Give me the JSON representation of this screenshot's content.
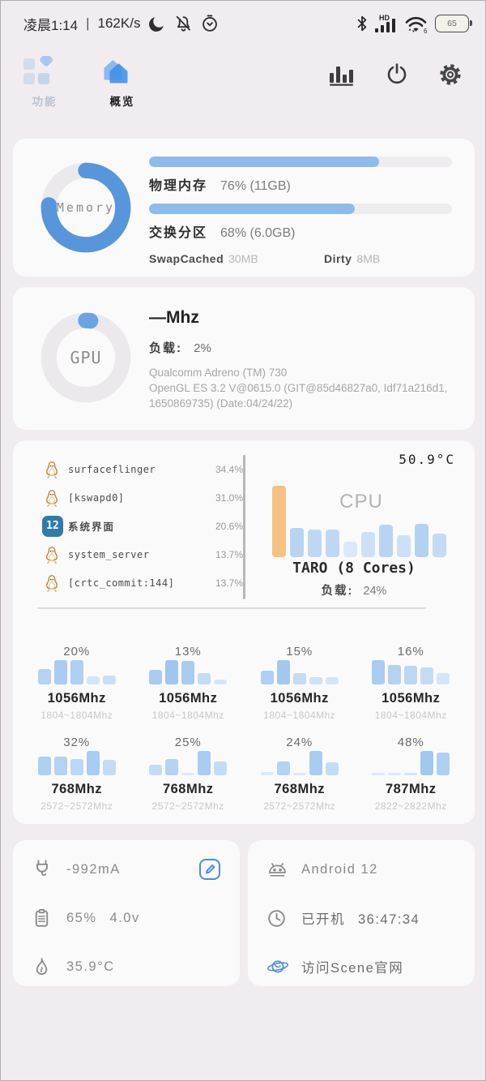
{
  "status_bar": {
    "time": "凌晨1:14",
    "divider": "|",
    "net_speed": "162K/s",
    "left_icons": [
      "moon-icon",
      "bell-muted-icon",
      "alarm-icon"
    ],
    "hd_label": "HD",
    "wifi_badge": "6",
    "battery_level": "65"
  },
  "nav": {
    "tabs": [
      {
        "label": "功能",
        "active": false
      },
      {
        "label": "概览",
        "active": true
      }
    ],
    "actions": [
      "stats-icon",
      "power-icon",
      "settings-gear-icon"
    ]
  },
  "memory_card": {
    "donut_label": "Memory",
    "ram_percent": 76,
    "ram_label": "物理内存",
    "ram_value": "76% (11GB)",
    "swap_percent": 68,
    "swap_label": "交换分区",
    "swap_value": "68% (6.0GB)",
    "swapcached_label": "SwapCached",
    "swapcached_value": "30MB",
    "dirty_label": "Dirty",
    "dirty_value": "8MB"
  },
  "gpu_card": {
    "donut_label": "GPU",
    "load_percent": 2,
    "freq": "—Mhz",
    "load_label": "负载:",
    "load_value": "2%",
    "desc_line1": "Qualcomm Adreno (TM) 730",
    "desc_line2": "OpenGL ES 3.2 V@0615.0 (GIT@85d46827a0, Idf71a216d1,",
    "desc_line3": "1650869735) (Date:04/24/22)"
  },
  "cpu_card": {
    "temp": "50.9°C",
    "chart_label": "CPU",
    "chip": "TARO (8 Cores)",
    "load_label": "负载:",
    "load_value": "24%",
    "processes": [
      {
        "icon": "tux-icon",
        "name": "surfaceflinger",
        "cpu": "34.4%"
      },
      {
        "icon": "tux-icon",
        "name": "[kswapd0]",
        "cpu": "31.0%"
      },
      {
        "icon": "android12-icon",
        "badge": "12",
        "name": "系统界面",
        "cpu": "20.6%"
      },
      {
        "icon": "tux-icon",
        "name": "system_server",
        "cpu": "13.7%"
      },
      {
        "icon": "tux-icon",
        "name": "[crtc_commit:144]",
        "cpu": "13.7%"
      }
    ],
    "chart": {
      "bars": [
        {
          "v": 100,
          "c": "#f7c183"
        },
        {
          "v": 41,
          "c": "#b7d4f2"
        },
        {
          "v": 39,
          "c": "#bed8f4"
        },
        {
          "v": 39,
          "c": "#bed8f4"
        },
        {
          "v": 22,
          "c": "#d9e9fb"
        },
        {
          "v": 35,
          "c": "#cce0f7"
        },
        {
          "v": 45,
          "c": "#b7d4f2"
        },
        {
          "v": 31,
          "c": "#cce0f7"
        },
        {
          "v": 47,
          "c": "#b3d2f1"
        },
        {
          "v": 33,
          "c": "#c4dbf5"
        }
      ]
    },
    "cores": [
      {
        "load": "20%",
        "freq": "1056Mhz",
        "range": "1804~1804Mhz",
        "spark": [
          {
            "h": 0.62,
            "c": "#b4d2f2"
          },
          {
            "h": 1,
            "c": "#a9ccf1"
          },
          {
            "h": 1,
            "c": "#aed0f2"
          },
          {
            "h": 0.33,
            "c": "#d3e5f8"
          },
          {
            "h": 0.35,
            "c": "#cadff6"
          }
        ]
      },
      {
        "load": "13%",
        "freq": "1056Mhz",
        "range": "1804~1804Mhz",
        "spark": [
          {
            "h": 0.6,
            "c": "#a9ccf1"
          },
          {
            "h": 1,
            "c": "#9fc6ef"
          },
          {
            "h": 0.95,
            "c": "#a9ccf1"
          },
          {
            "h": 0.45,
            "c": "#c3dbf5"
          },
          {
            "h": 0.2,
            "c": "#d3e5f8"
          }
        ]
      },
      {
        "load": "15%",
        "freq": "1056Mhz",
        "range": "1804~1804Mhz",
        "spark": [
          {
            "h": 0.55,
            "c": "#aed0f2"
          },
          {
            "h": 1,
            "c": "#a3c8f0"
          },
          {
            "h": 0.45,
            "c": "#c3dbf5"
          },
          {
            "h": 0.3,
            "c": "#cde1f7"
          },
          {
            "h": 0.3,
            "c": "#d3e5f8"
          }
        ]
      },
      {
        "load": "16%",
        "freq": "1056Mhz",
        "range": "1804~1804Mhz",
        "spark": [
          {
            "h": 1,
            "c": "#a9ccf1"
          },
          {
            "h": 0.8,
            "c": "#b4d2f2"
          },
          {
            "h": 0.75,
            "c": "#bcd7f3"
          },
          {
            "h": 0.7,
            "c": "#c3dbf5"
          },
          {
            "h": 0.45,
            "c": "#d3e5f8"
          }
        ]
      },
      {
        "load": "32%",
        "freq": "768Mhz",
        "range": "2572~2572Mhz",
        "spark": [
          {
            "h": 0.78,
            "c": "#aed0f2"
          },
          {
            "h": 0.78,
            "c": "#b4d2f2"
          },
          {
            "h": 0.68,
            "c": "#bcd7f3"
          },
          {
            "h": 1,
            "c": "#a9ccf1"
          },
          {
            "h": 0.62,
            "c": "#c3dbf5"
          }
        ]
      },
      {
        "load": "25%",
        "freq": "768Mhz",
        "range": "2572~2572Mhz",
        "spark": [
          {
            "h": 0.42,
            "c": "#c3dbf5"
          },
          {
            "h": 0.65,
            "c": "#b4d2f2"
          },
          {
            "h": 0.08,
            "c": "#dbe9fa"
          },
          {
            "h": 1,
            "c": "#a9ccf1"
          },
          {
            "h": 0.55,
            "c": "#c3dbf5"
          }
        ]
      },
      {
        "load": "24%",
        "freq": "768Mhz",
        "range": "2572~2572Mhz",
        "spark": [
          {
            "h": 0.12,
            "c": "#dbe9fa"
          },
          {
            "h": 0.58,
            "c": "#b4d2f2"
          },
          {
            "h": 0.1,
            "c": "#dbe9fa"
          },
          {
            "h": 1,
            "c": "#a9ccf1"
          },
          {
            "h": 0.52,
            "c": "#c3dbf5"
          }
        ]
      },
      {
        "load": "48%",
        "freq": "787Mhz",
        "range": "2822~2822Mhz",
        "spark": [
          {
            "h": 0.05,
            "c": "#dbe9fa"
          },
          {
            "h": 0.09,
            "c": "#dbe9fa"
          },
          {
            "h": 0.09,
            "c": "#d3e5f8"
          },
          {
            "h": 1,
            "c": "#a3c8f0"
          },
          {
            "h": 0.93,
            "c": "#aed0f2"
          }
        ]
      }
    ]
  },
  "power_card": {
    "current": "-992mA",
    "battery_percent": "65%",
    "battery_voltage": "4.0v",
    "battery_temp": "35.9°C",
    "icons": [
      "plug-icon",
      "clipboard-icon",
      "flame-icon",
      "edit-icon"
    ]
  },
  "info_card": {
    "os": "Android 12",
    "uptime_label": "已开机",
    "uptime": "36:47:34",
    "website": "访问Scene官网",
    "icons": [
      "android-robot-icon",
      "clock-icon",
      "planet-icon"
    ]
  },
  "colors": {
    "accent_blue": "#5896dc",
    "progress_blue": "#8fbaec",
    "bar_orange": "#f7c183",
    "background": "#f1ecef",
    "card": "#fbfafb"
  }
}
